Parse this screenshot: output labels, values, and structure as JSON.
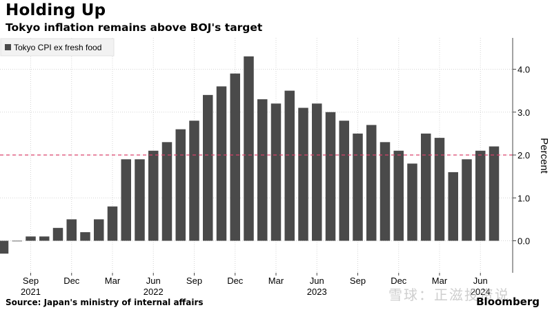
{
  "header": {
    "title": "Holding Up",
    "subtitle": "Tokyo inflation remains above BOJ's target"
  },
  "footer": {
    "source": "Source: Japan's ministry of internal affairs",
    "brand": "Bloomberg",
    "watermark": "雪球：正滋投资说"
  },
  "colors": {
    "bar": "#4a4a4a",
    "target_line": "#d9426a",
    "grid": "#d4d4d4",
    "axis": "#444444",
    "text": "#000000"
  },
  "chart_data": {
    "type": "bar",
    "legend": {
      "label": "Tokyo CPI ex fresh food",
      "placement": "top-left"
    },
    "ylabel": "Percent",
    "ylim": [
      -0.75,
      4.75
    ],
    "yticks": [
      {
        "value": 0,
        "label": "0.0"
      },
      {
        "value": 1,
        "label": "1.0"
      },
      {
        "value": 2,
        "label": "2.0"
      },
      {
        "value": 3,
        "label": "3.0"
      },
      {
        "value": 4,
        "label": "4.0"
      }
    ],
    "reference_line": {
      "value": 2.0,
      "style": "dashed"
    },
    "categories": [
      "2021-07",
      "2021-08",
      "2021-09",
      "2021-10",
      "2021-11",
      "2021-12",
      "2022-01",
      "2022-02",
      "2022-03",
      "2022-04",
      "2022-05",
      "2022-06",
      "2022-07",
      "2022-08",
      "2022-09",
      "2022-10",
      "2022-11",
      "2022-12",
      "2023-01",
      "2023-02",
      "2023-03",
      "2023-04",
      "2023-05",
      "2023-06",
      "2023-07",
      "2023-08",
      "2023-09",
      "2023-10",
      "2023-11",
      "2023-12",
      "2024-01",
      "2024-02",
      "2024-03",
      "2024-04",
      "2024-05",
      "2024-06",
      "2024-07"
    ],
    "values": [
      -0.3,
      0.0,
      0.1,
      0.1,
      0.3,
      0.5,
      0.2,
      0.5,
      0.8,
      1.9,
      1.9,
      2.1,
      2.3,
      2.6,
      2.8,
      3.4,
      3.6,
      3.9,
      4.3,
      3.3,
      3.2,
      3.5,
      3.1,
      3.2,
      3.0,
      2.8,
      2.5,
      2.7,
      2.3,
      2.1,
      1.8,
      2.5,
      2.4,
      1.6,
      1.9,
      2.1,
      2.2
    ],
    "xticks": [
      {
        "index": 2,
        "month": "Sep",
        "year": "2021"
      },
      {
        "index": 5,
        "month": "Dec",
        "year": ""
      },
      {
        "index": 8,
        "month": "Mar",
        "year": ""
      },
      {
        "index": 11,
        "month": "Jun",
        "year": "2022"
      },
      {
        "index": 14,
        "month": "Sep",
        "year": ""
      },
      {
        "index": 17,
        "month": "Dec",
        "year": ""
      },
      {
        "index": 20,
        "month": "Mar",
        "year": ""
      },
      {
        "index": 23,
        "month": "Jun",
        "year": "2023"
      },
      {
        "index": 26,
        "month": "Sep",
        "year": ""
      },
      {
        "index": 29,
        "month": "Dec",
        "year": ""
      },
      {
        "index": 32,
        "month": "Mar",
        "year": ""
      },
      {
        "index": 35,
        "month": "Jun",
        "year": "2024"
      }
    ],
    "grid": true
  }
}
